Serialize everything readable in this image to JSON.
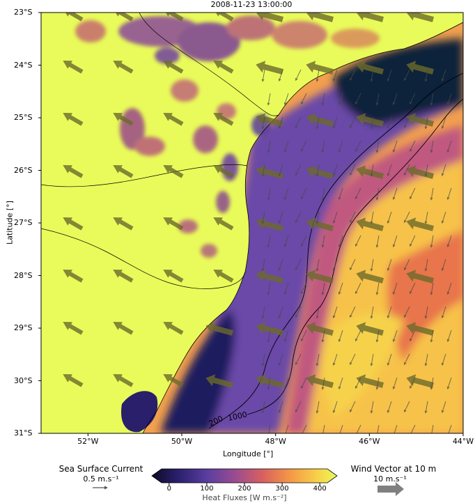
{
  "title": "2008-11-23 13:00:00",
  "axes": {
    "xlabel": "Longitude [°]",
    "ylabel": "Latitude [°]",
    "lon_ticks": [
      "52°W",
      "50°W",
      "48°W",
      "46°W",
      "44°W"
    ],
    "lat_ticks": [
      "23°S",
      "24°S",
      "25°S",
      "26°S",
      "27°S",
      "28°S",
      "29°S",
      "30°S",
      "31°S"
    ],
    "lon_range": [
      -53.0,
      -44.0
    ],
    "lat_range": [
      -31.0,
      -23.0
    ]
  },
  "isobaths": {
    "labels": [
      "200",
      "1000"
    ]
  },
  "colorbar": {
    "label": "Heat Fluxes [W m.s⁻²]",
    "ticks": [
      "0",
      "100",
      "200",
      "300",
      "400"
    ],
    "range": [
      -20,
      420
    ],
    "colors": [
      "#0d0a26",
      "#2a1f6b",
      "#5b3ea0",
      "#9a4c90",
      "#d96060",
      "#f49a45",
      "#f7d34a",
      "#e9fb5a"
    ]
  },
  "legend": {
    "current_title": "Sea Surface Current",
    "current_scale": "0.5 m.s⁻¹",
    "wind_title": "Wind Vector at 10 m",
    "wind_scale": "10 m.s⁻¹"
  },
  "colors": {
    "land": "#e9fb5a",
    "wind_arrow": "#6b6a2a",
    "current_arrow": "#4a4a4a"
  }
}
